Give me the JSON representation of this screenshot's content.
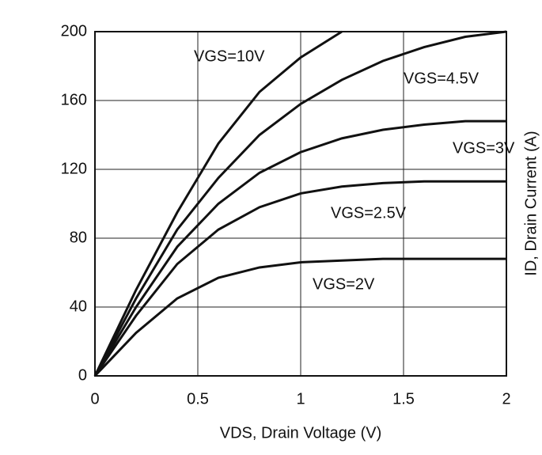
{
  "chart_data": {
    "type": "line",
    "x_label": "VDS, Drain Voltage (V)",
    "y_label": "ID, Drain Current (A)",
    "x": [
      0,
      0.2,
      0.4,
      0.6,
      0.8,
      1.0,
      1.2,
      1.4,
      1.6,
      1.8,
      2.0
    ],
    "xlim": [
      0,
      2
    ],
    "xticks": [
      0,
      0.5,
      1,
      1.5,
      2
    ],
    "ylim": [
      0,
      200
    ],
    "yticks": [
      0,
      40,
      80,
      120,
      160,
      200
    ],
    "grid": true,
    "series": [
      {
        "name": "VGS=10V",
        "color": "#111111",
        "values": [
          0,
          50,
          95,
          135,
          165,
          185,
          200,
          null,
          null,
          null,
          null
        ]
      },
      {
        "name": "VGS=4.5V",
        "color": "#111111",
        "values": [
          0,
          45,
          85,
          115,
          140,
          158,
          172,
          183,
          191,
          197,
          200
        ]
      },
      {
        "name": "VGS=3V",
        "color": "#111111",
        "values": [
          0,
          40,
          75,
          100,
          118,
          130,
          138,
          143,
          146,
          148,
          148
        ]
      },
      {
        "name": "VGS=2.5V",
        "color": "#111111",
        "values": [
          0,
          35,
          65,
          85,
          98,
          106,
          110,
          112,
          113,
          113,
          113
        ]
      },
      {
        "name": "VGS=2V",
        "color": "#111111",
        "values": [
          0,
          25,
          45,
          57,
          63,
          66,
          67,
          68,
          68,
          68,
          68
        ]
      }
    ]
  }
}
